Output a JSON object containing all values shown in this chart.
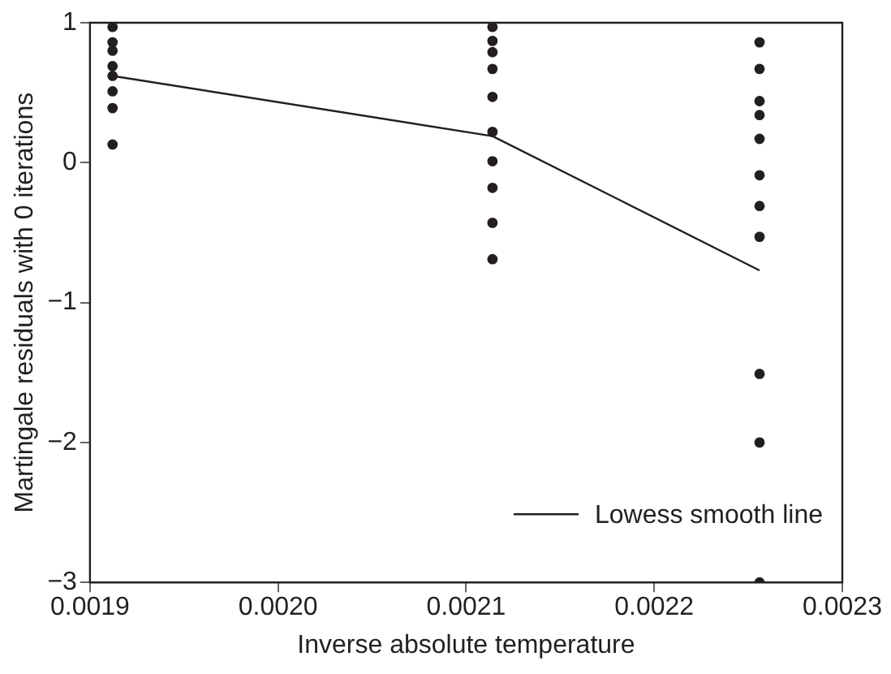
{
  "chart_data": {
    "type": "scatter",
    "xlabel": "Inverse absolute temperature",
    "ylabel": "Martingale residuals with 0 iterations",
    "xlim": [
      0.0019,
      0.0023
    ],
    "xticks": [
      {
        "value": 0.0019,
        "label": "0.0019"
      },
      {
        "value": 0.002,
        "label": "0.0020"
      },
      {
        "value": 0.0021,
        "label": "0.0021"
      },
      {
        "value": 0.0022,
        "label": "0.0022"
      },
      {
        "value": 0.0023,
        "label": "0.0023"
      }
    ],
    "ylim": [
      -3,
      1
    ],
    "yticks": [
      1,
      0,
      -1,
      -2,
      -3
    ],
    "grid": false,
    "legend": "bottom right",
    "marker": "circle",
    "series": [
      {
        "type": "scatter",
        "color": "#231f20",
        "x": [
          0.001912,
          0.001912,
          0.001912,
          0.001912,
          0.001912,
          0.001912,
          0.001912,
          0.001912,
          0.002114,
          0.002114,
          0.002114,
          0.002114,
          0.002114,
          0.002114,
          0.002114,
          0.002114,
          0.002114,
          0.002114,
          0.002256,
          0.002256,
          0.002256,
          0.002256,
          0.002256,
          0.002256,
          0.002256,
          0.002256,
          0.002256,
          0.002256,
          0.002256
        ],
        "values": [
          0.97,
          0.86,
          0.8,
          0.69,
          0.62,
          0.51,
          0.39,
          0.13,
          0.97,
          0.87,
          0.79,
          0.67,
          0.47,
          0.22,
          0.01,
          -0.18,
          -0.43,
          -0.69,
          0.86,
          0.67,
          0.44,
          0.34,
          0.17,
          -0.09,
          -0.31,
          -0.53,
          -1.51,
          -2,
          -3
        ]
      },
      {
        "type": "line",
        "name": "Lowess smooth line",
        "color": "#231f20",
        "marker": "none",
        "line_style": "solid",
        "x": [
          0.001912,
          0.002114,
          0.002256
        ],
        "values": [
          0.62,
          0.19,
          -0.77
        ]
      }
    ]
  }
}
